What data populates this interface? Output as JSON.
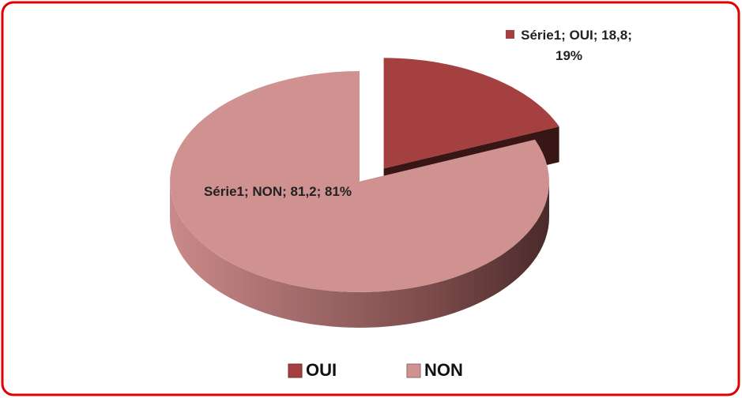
{
  "chart_data": {
    "type": "pie3d",
    "series_name": "Série1",
    "categories": [
      "OUI",
      "NON"
    ],
    "values": [
      18.8,
      81.2
    ],
    "value_labels": [
      "Série1; OUI; 18,8; 19%",
      "Série1; NON; 81,2; 81%"
    ],
    "colors": [
      "#a4403f",
      "#d09291"
    ],
    "legend": "bottom"
  }
}
